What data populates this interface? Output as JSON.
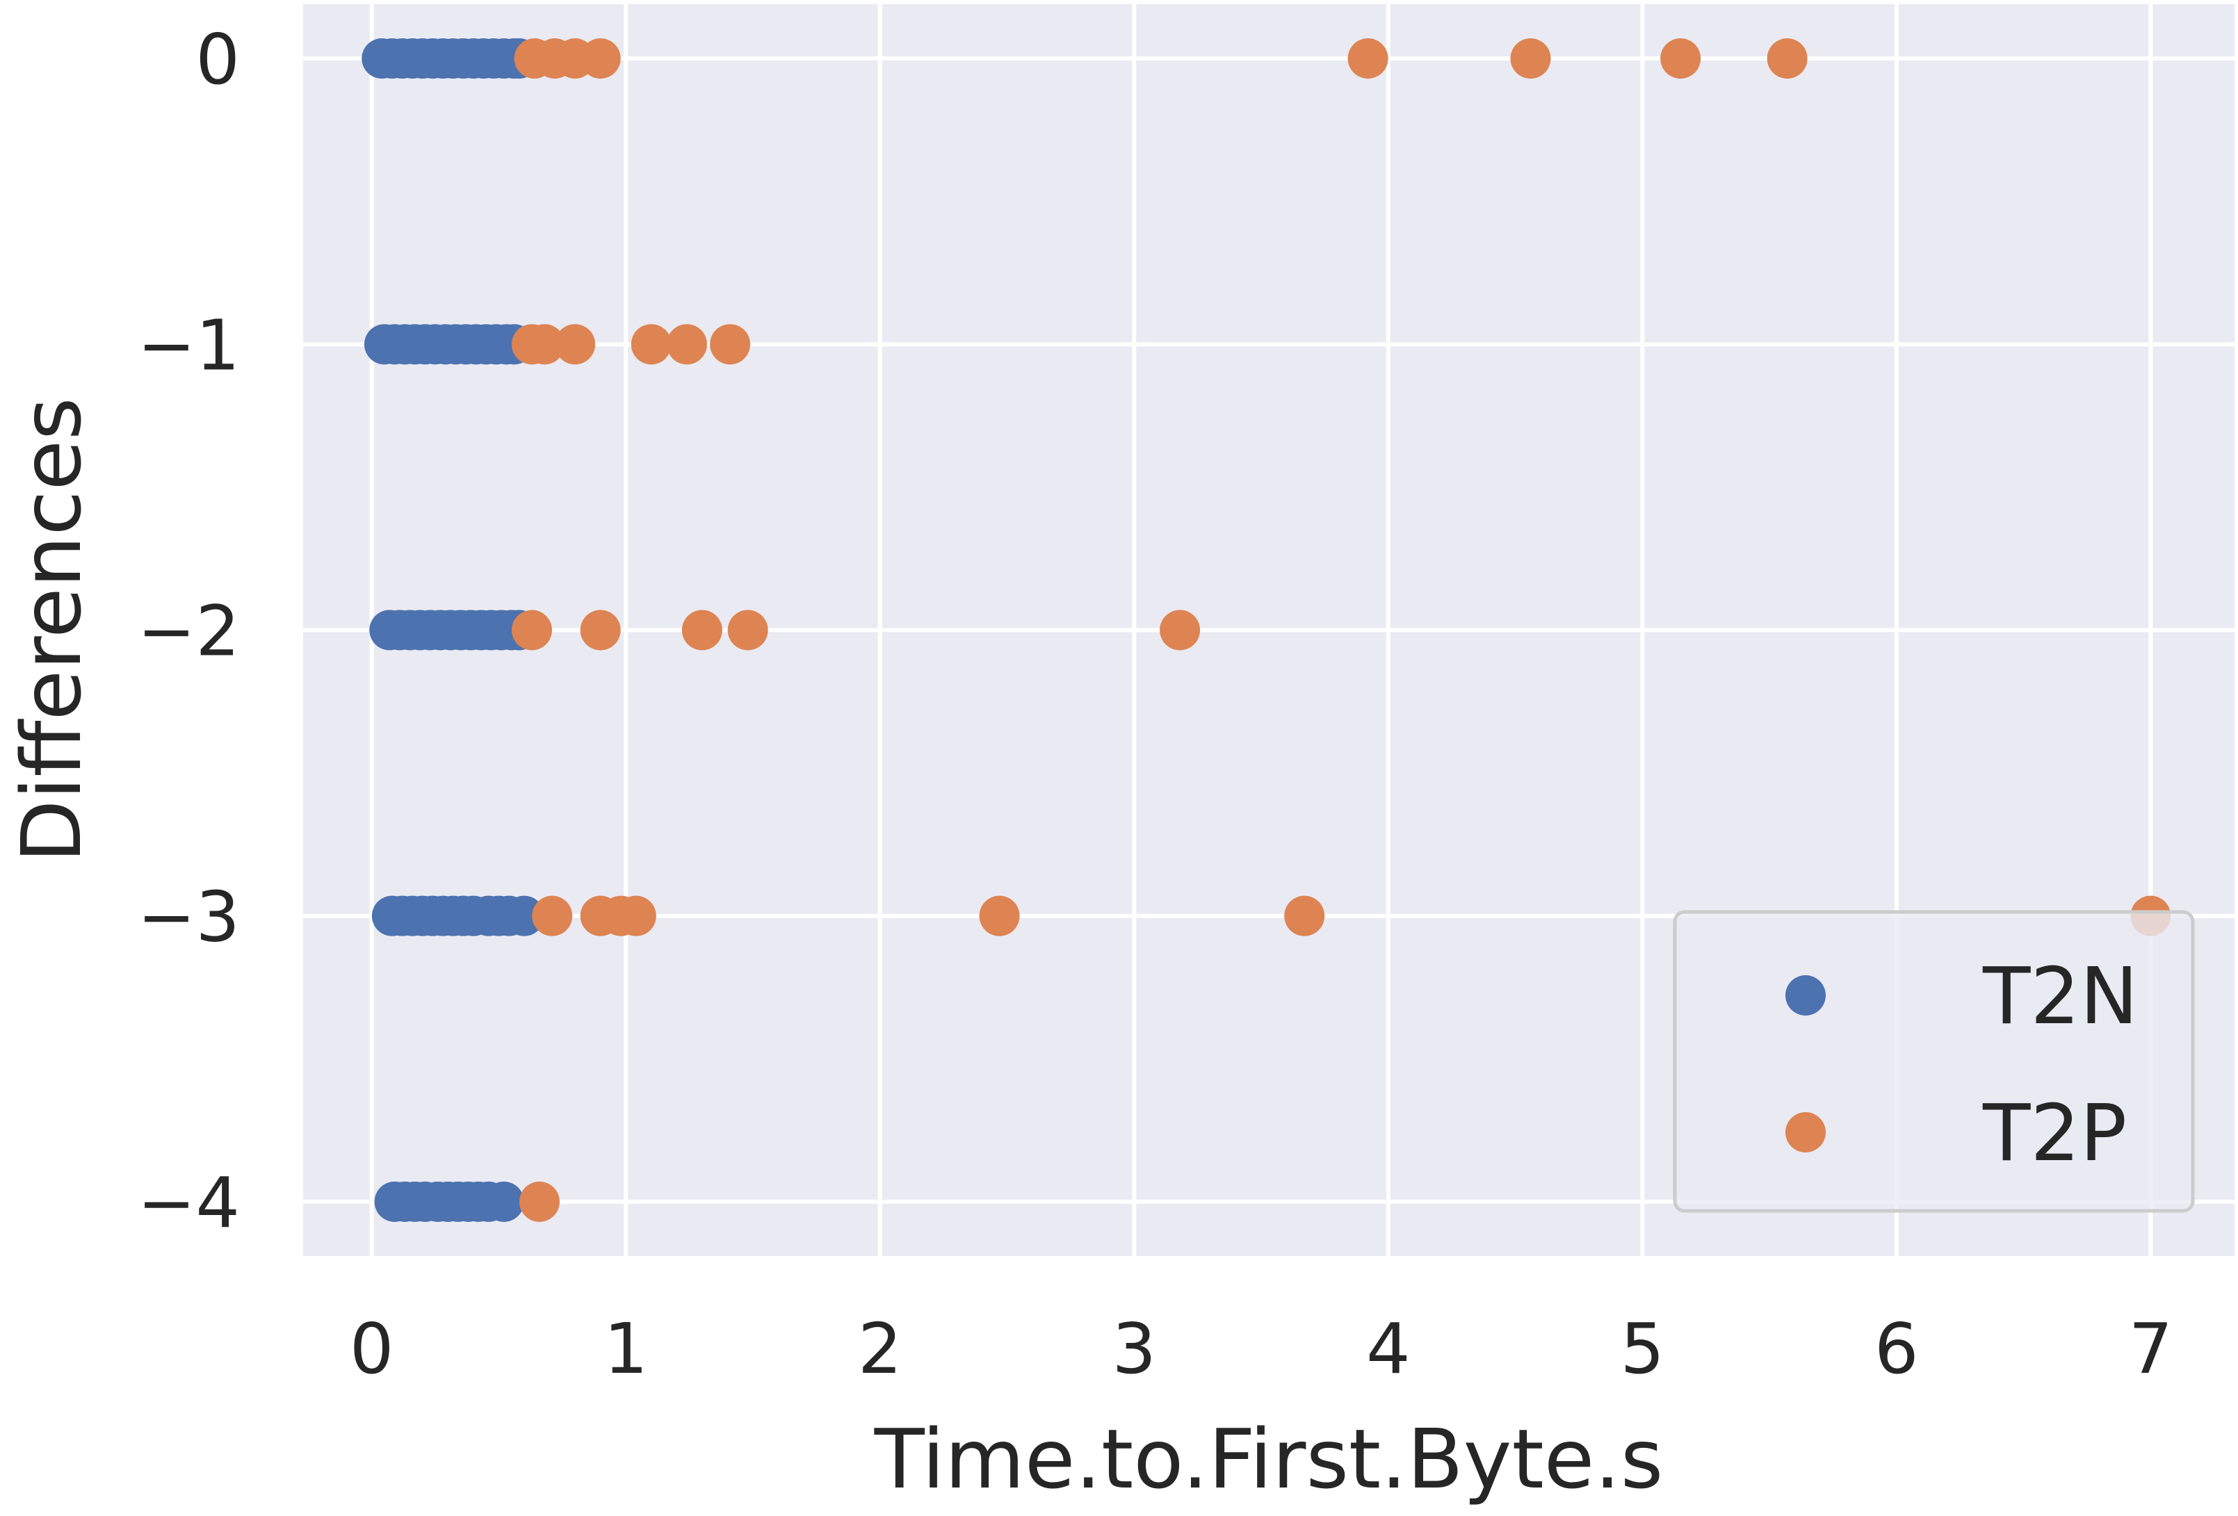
{
  "chart_data": {
    "type": "scatter",
    "xlabel": "Time.to.First.Byte.s",
    "ylabel": "Differences",
    "xlim": [
      -0.27,
      7.33
    ],
    "ylim": [
      -4.19,
      0.19
    ],
    "x_ticks": [
      0,
      1,
      2,
      3,
      4,
      5,
      6,
      7
    ],
    "y_ticks": [
      0,
      -1,
      -2,
      -3,
      -4
    ],
    "x_tick_labels": [
      "0",
      "1",
      "2",
      "3",
      "4",
      "5",
      "6",
      "7"
    ],
    "y_tick_labels": [
      "0",
      "−1",
      "−2",
      "−3",
      "−4"
    ],
    "grid": true,
    "legend_position": "bottom-right",
    "series": [
      {
        "name": "T2N",
        "color": "#4C72B0",
        "points": [
          [
            0.04,
            0
          ],
          [
            0.08,
            0
          ],
          [
            0.12,
            0
          ],
          [
            0.16,
            0
          ],
          [
            0.2,
            0
          ],
          [
            0.24,
            0
          ],
          [
            0.28,
            0
          ],
          [
            0.32,
            0
          ],
          [
            0.36,
            0
          ],
          [
            0.4,
            0
          ],
          [
            0.44,
            0
          ],
          [
            0.48,
            0
          ],
          [
            0.52,
            0
          ],
          [
            0.56,
            0
          ],
          [
            0.58,
            0
          ],
          [
            0.05,
            -1
          ],
          [
            0.09,
            -1
          ],
          [
            0.13,
            -1
          ],
          [
            0.17,
            -1
          ],
          [
            0.21,
            -1
          ],
          [
            0.25,
            -1
          ],
          [
            0.29,
            -1
          ],
          [
            0.33,
            -1
          ],
          [
            0.37,
            -1
          ],
          [
            0.41,
            -1
          ],
          [
            0.45,
            -1
          ],
          [
            0.49,
            -1
          ],
          [
            0.53,
            -1
          ],
          [
            0.56,
            -1
          ],
          [
            0.07,
            -2
          ],
          [
            0.11,
            -2
          ],
          [
            0.15,
            -2
          ],
          [
            0.19,
            -2
          ],
          [
            0.23,
            -2
          ],
          [
            0.27,
            -2
          ],
          [
            0.31,
            -2
          ],
          [
            0.35,
            -2
          ],
          [
            0.39,
            -2
          ],
          [
            0.43,
            -2
          ],
          [
            0.47,
            -2
          ],
          [
            0.51,
            -2
          ],
          [
            0.55,
            -2
          ],
          [
            0.58,
            -2
          ],
          [
            0.08,
            -3
          ],
          [
            0.12,
            -3
          ],
          [
            0.16,
            -3
          ],
          [
            0.2,
            -3
          ],
          [
            0.24,
            -3
          ],
          [
            0.28,
            -3
          ],
          [
            0.32,
            -3
          ],
          [
            0.36,
            -3
          ],
          [
            0.4,
            -3
          ],
          [
            0.46,
            -3
          ],
          [
            0.5,
            -3
          ],
          [
            0.54,
            -3
          ],
          [
            0.6,
            -3
          ],
          [
            0.09,
            -4
          ],
          [
            0.13,
            -4
          ],
          [
            0.17,
            -4
          ],
          [
            0.21,
            -4
          ],
          [
            0.26,
            -4
          ],
          [
            0.3,
            -4
          ],
          [
            0.34,
            -4
          ],
          [
            0.38,
            -4
          ],
          [
            0.42,
            -4
          ],
          [
            0.46,
            -4
          ],
          [
            0.52,
            -4
          ]
        ]
      },
      {
        "name": "T2P",
        "color": "#DD8452",
        "points": [
          [
            0.64,
            0
          ],
          [
            0.72,
            0
          ],
          [
            0.8,
            0
          ],
          [
            0.9,
            0
          ],
          [
            3.92,
            0
          ],
          [
            4.56,
            0
          ],
          [
            5.15,
            0
          ],
          [
            5.57,
            0
          ],
          [
            0.63,
            -1
          ],
          [
            0.68,
            -1
          ],
          [
            0.8,
            -1
          ],
          [
            1.1,
            -1
          ],
          [
            1.24,
            -1
          ],
          [
            1.41,
            -1
          ],
          [
            0.63,
            -2
          ],
          [
            0.9,
            -2
          ],
          [
            1.3,
            -2
          ],
          [
            1.48,
            -2
          ],
          [
            3.18,
            -2
          ],
          [
            0.71,
            -3
          ],
          [
            0.9,
            -3
          ],
          [
            0.98,
            -3
          ],
          [
            1.04,
            -3
          ],
          [
            2.47,
            -3
          ],
          [
            3.67,
            -3
          ],
          [
            7.0,
            -3
          ],
          [
            0.66,
            -4
          ]
        ]
      }
    ]
  }
}
